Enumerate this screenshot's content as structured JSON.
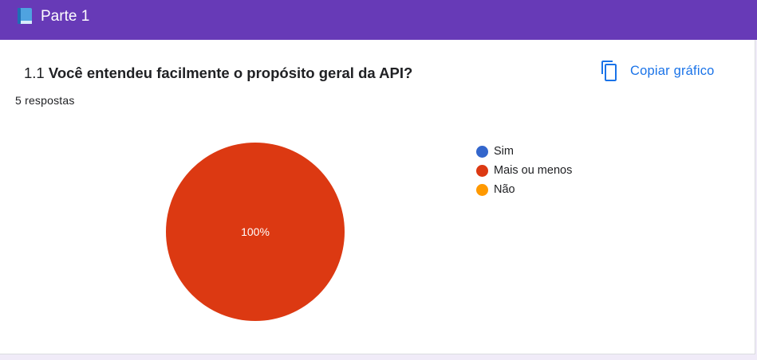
{
  "section": {
    "icon": "book-icon",
    "title": "Parte 1"
  },
  "question": {
    "number": "1.1",
    "text": "Você entendeu facilmente o propósito geral da API?",
    "responses_count": "5 respostas"
  },
  "copy_chart": {
    "icon": "copy-icon",
    "label": "Copiar gráfico"
  },
  "colors": {
    "header": "#673ab7",
    "accent": "#1a73e8"
  },
  "chart_data": {
    "type": "pie",
    "slices": [
      {
        "label": "Sim",
        "value": 0,
        "color": "#3366cc"
      },
      {
        "label": "Mais ou menos",
        "value": 100,
        "color": "#dc3912"
      },
      {
        "label": "Não",
        "value": 0,
        "color": "#ff9900"
      }
    ],
    "data_labels": [
      "100%"
    ],
    "legend_position": "right"
  }
}
